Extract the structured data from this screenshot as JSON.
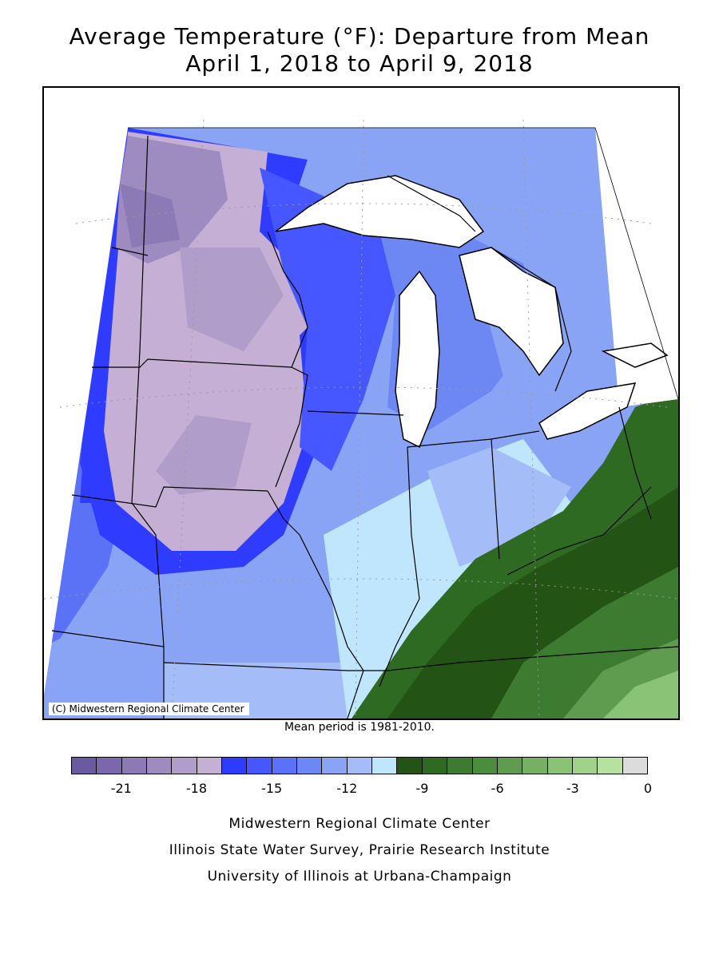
{
  "title": {
    "line1": "Average Temperature (°F): Departure from Mean",
    "line2": "April 1, 2018 to April 9, 2018"
  },
  "map": {
    "copyright": "(C) Midwestern Regional Climate Center",
    "region": "Midwest United States and Great Lakes",
    "lake_color": "#ffffff",
    "border_color": "#000000"
  },
  "mean_period": "Mean period is 1981-2010.",
  "legend": {
    "colors": [
      "#6a5aa0",
      "#7b68ac",
      "#8c7ab6",
      "#9e8bbf",
      "#b19dc9",
      "#c5afd4",
      "#2f3cff",
      "#4757ff",
      "#5b72f6",
      "#6e88f3",
      "#8aa4f5",
      "#a4bdf8",
      "#bfe6fc",
      "#245415",
      "#2f6a22",
      "#3d7b30",
      "#4c8c3f",
      "#5f9c50",
      "#75b063",
      "#8ac375",
      "#9fd38a",
      "#b5e39d",
      "#dcdcdc"
    ],
    "tick_labels": [
      "-21",
      "-18",
      "-15",
      "-12",
      "-9",
      "-6",
      "-3",
      "0"
    ]
  },
  "footer": {
    "line1": "Midwestern Regional Climate Center",
    "line2": "Illinois State Water Survey, Prairie Research Institute",
    "line3": "University of Illinois at Urbana-Champaign"
  }
}
